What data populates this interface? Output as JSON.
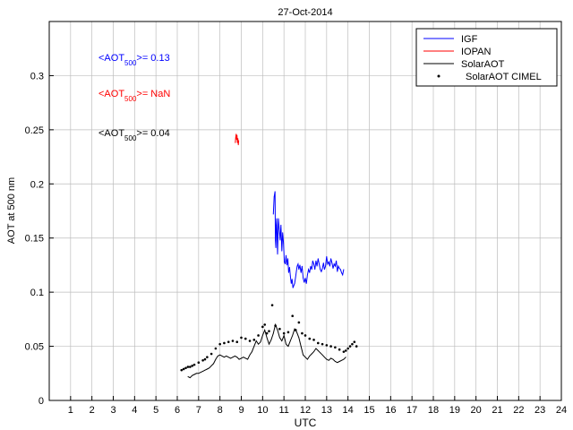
{
  "chart_data": {
    "type": "line",
    "title": "27-Oct-2014",
    "xlabel": "UTC",
    "ylabel": "AOT at 500 nm",
    "xlim": [
      0,
      24
    ],
    "ylim": [
      0,
      0.35
    ],
    "grid": true,
    "legend_position": "top-right",
    "x_ticks": [
      1,
      2,
      3,
      4,
      5,
      6,
      7,
      8,
      9,
      10,
      11,
      12,
      13,
      14,
      15,
      16,
      17,
      18,
      19,
      20,
      21,
      22,
      23,
      24
    ],
    "x_tick_labels": [
      "1",
      "2",
      "3",
      "4",
      "5",
      "6",
      "7",
      "8",
      "9",
      "10",
      "11",
      "12",
      "13",
      "14",
      "15",
      "16",
      "17",
      "18",
      "19",
      "20",
      "21",
      "22",
      "23",
      "24"
    ],
    "y_ticks": [
      0,
      0.05,
      0.1,
      0.15,
      0.2,
      0.25,
      0.3
    ],
    "y_tick_labels": [
      "0",
      "0.05",
      "0.1",
      "0.15",
      "0.2",
      "0.25",
      "0.3"
    ],
    "annotations": [
      {
        "prefix": "<AOT",
        "sub": "500",
        "suffix": ">= 0.13",
        "color": "#0000ff"
      },
      {
        "prefix": "<AOT",
        "sub": "500",
        "suffix": ">=  NaN",
        "color": "#ff0000"
      },
      {
        "prefix": "<AOT",
        "sub": "500",
        "suffix": ">= 0.04",
        "color": "#000000"
      }
    ],
    "series": [
      {
        "name": "IGF",
        "style": "line",
        "color": "#0000ff",
        "x": [
          10.5,
          10.54,
          10.58,
          10.6,
          10.62,
          10.64,
          10.66,
          10.7,
          10.74,
          10.78,
          10.82,
          10.86,
          10.9,
          10.94,
          10.98,
          11.02,
          11.06,
          11.1,
          11.14,
          11.18,
          11.22,
          11.26,
          11.3,
          11.34,
          11.38,
          11.42,
          11.46,
          11.5,
          11.54,
          11.58,
          11.62,
          11.66,
          11.7,
          11.75,
          11.8,
          11.85,
          11.9,
          11.95,
          12.0,
          12.05,
          12.1,
          12.15,
          12.2,
          12.25,
          12.3,
          12.35,
          12.4,
          12.45,
          12.5,
          12.55,
          12.6,
          12.65,
          12.7,
          12.75,
          12.8,
          12.85,
          12.9,
          12.95,
          13.0,
          13.05,
          13.1,
          13.15,
          13.2,
          13.25,
          13.3,
          13.35,
          13.4,
          13.45,
          13.5,
          13.55,
          13.6,
          13.65,
          13.7,
          13.75,
          13.8
        ],
        "values": [
          0.172,
          0.188,
          0.193,
          0.148,
          0.141,
          0.162,
          0.168,
          0.135,
          0.168,
          0.158,
          0.148,
          0.162,
          0.138,
          0.155,
          0.145,
          0.128,
          0.126,
          0.134,
          0.125,
          0.131,
          0.118,
          0.123,
          0.115,
          0.108,
          0.112,
          0.104,
          0.106,
          0.108,
          0.113,
          0.119,
          0.124,
          0.126,
          0.121,
          0.125,
          0.118,
          0.124,
          0.113,
          0.109,
          0.113,
          0.108,
          0.116,
          0.121,
          0.118,
          0.124,
          0.121,
          0.129,
          0.126,
          0.121,
          0.129,
          0.124,
          0.131,
          0.126,
          0.121,
          0.119,
          0.122,
          0.127,
          0.121,
          0.124,
          0.133,
          0.126,
          0.128,
          0.124,
          0.131,
          0.127,
          0.122,
          0.126,
          0.124,
          0.129,
          0.119,
          0.124,
          0.122,
          0.121,
          0.118,
          0.116,
          0.121
        ]
      },
      {
        "name": "IOPAN",
        "style": "line",
        "color": "#ff0000",
        "x": [
          8.72,
          8.74,
          8.76,
          8.78,
          8.8,
          8.82,
          8.84,
          8.86,
          8.88
        ],
        "values": [
          0.238,
          0.243,
          0.246,
          0.241,
          0.245,
          0.238,
          0.242,
          0.236,
          0.24
        ]
      },
      {
        "name": "SolarAOT",
        "style": "line",
        "color": "#000000",
        "x": [
          6.5,
          6.6,
          6.7,
          6.8,
          6.9,
          7.0,
          7.1,
          7.2,
          7.3,
          7.4,
          7.5,
          7.6,
          7.7,
          7.8,
          7.9,
          8.0,
          8.1,
          8.2,
          8.3,
          8.4,
          8.5,
          8.6,
          8.7,
          8.8,
          8.9,
          9.0,
          9.1,
          9.2,
          9.3,
          9.4,
          9.5,
          9.6,
          9.7,
          9.8,
          9.9,
          10.0,
          10.1,
          10.2,
          10.3,
          10.4,
          10.5,
          10.6,
          10.7,
          10.8,
          10.9,
          11.0,
          11.1,
          11.2,
          11.3,
          11.4,
          11.5,
          11.6,
          11.7,
          11.8,
          11.9,
          12.0,
          12.1,
          12.2,
          12.3,
          12.4,
          12.5,
          12.6,
          12.7,
          12.8,
          12.9,
          13.0,
          13.1,
          13.2,
          13.3,
          13.4,
          13.5,
          13.6,
          13.7,
          13.8,
          13.9
        ],
        "values": [
          0.022,
          0.021,
          0.023,
          0.024,
          0.025,
          0.025,
          0.026,
          0.027,
          0.028,
          0.029,
          0.03,
          0.032,
          0.034,
          0.038,
          0.041,
          0.042,
          0.041,
          0.04,
          0.041,
          0.04,
          0.039,
          0.04,
          0.041,
          0.04,
          0.038,
          0.039,
          0.04,
          0.039,
          0.038,
          0.042,
          0.045,
          0.05,
          0.055,
          0.052,
          0.054,
          0.06,
          0.065,
          0.058,
          0.052,
          0.056,
          0.062,
          0.07,
          0.065,
          0.058,
          0.055,
          0.06,
          0.052,
          0.05,
          0.055,
          0.06,
          0.066,
          0.063,
          0.058,
          0.05,
          0.042,
          0.04,
          0.038,
          0.041,
          0.043,
          0.045,
          0.048,
          0.046,
          0.044,
          0.042,
          0.04,
          0.038,
          0.037,
          0.039,
          0.038,
          0.036,
          0.035,
          0.036,
          0.037,
          0.038,
          0.04
        ]
      },
      {
        "name": "SolarAOT CIMEL",
        "style": "marker",
        "color": "#000000",
        "x": [
          6.2,
          6.3,
          6.4,
          6.5,
          6.6,
          6.7,
          6.8,
          7.0,
          7.2,
          7.3,
          7.4,
          7.6,
          7.8,
          8.0,
          8.2,
          8.4,
          8.6,
          8.8,
          9.0,
          9.2,
          9.4,
          9.6,
          9.8,
          10.0,
          10.1,
          10.2,
          10.3,
          10.45,
          10.6,
          10.8,
          11.0,
          11.2,
          11.4,
          11.55,
          11.7,
          11.85,
          12.0,
          12.2,
          12.4,
          12.6,
          12.8,
          13.0,
          13.2,
          13.4,
          13.6,
          13.8,
          13.9,
          14.0,
          14.1,
          14.2,
          14.3,
          14.4
        ],
        "values": [
          0.028,
          0.029,
          0.03,
          0.031,
          0.031,
          0.032,
          0.033,
          0.035,
          0.037,
          0.038,
          0.04,
          0.043,
          0.048,
          0.052,
          0.053,
          0.054,
          0.055,
          0.054,
          0.058,
          0.057,
          0.055,
          0.056,
          0.06,
          0.068,
          0.07,
          0.062,
          0.064,
          0.088,
          0.069,
          0.066,
          0.062,
          0.063,
          0.078,
          0.065,
          0.072,
          0.062,
          0.06,
          0.057,
          0.056,
          0.053,
          0.052,
          0.051,
          0.05,
          0.049,
          0.047,
          0.045,
          0.046,
          0.048,
          0.05,
          0.052,
          0.054,
          0.05
        ]
      }
    ]
  }
}
